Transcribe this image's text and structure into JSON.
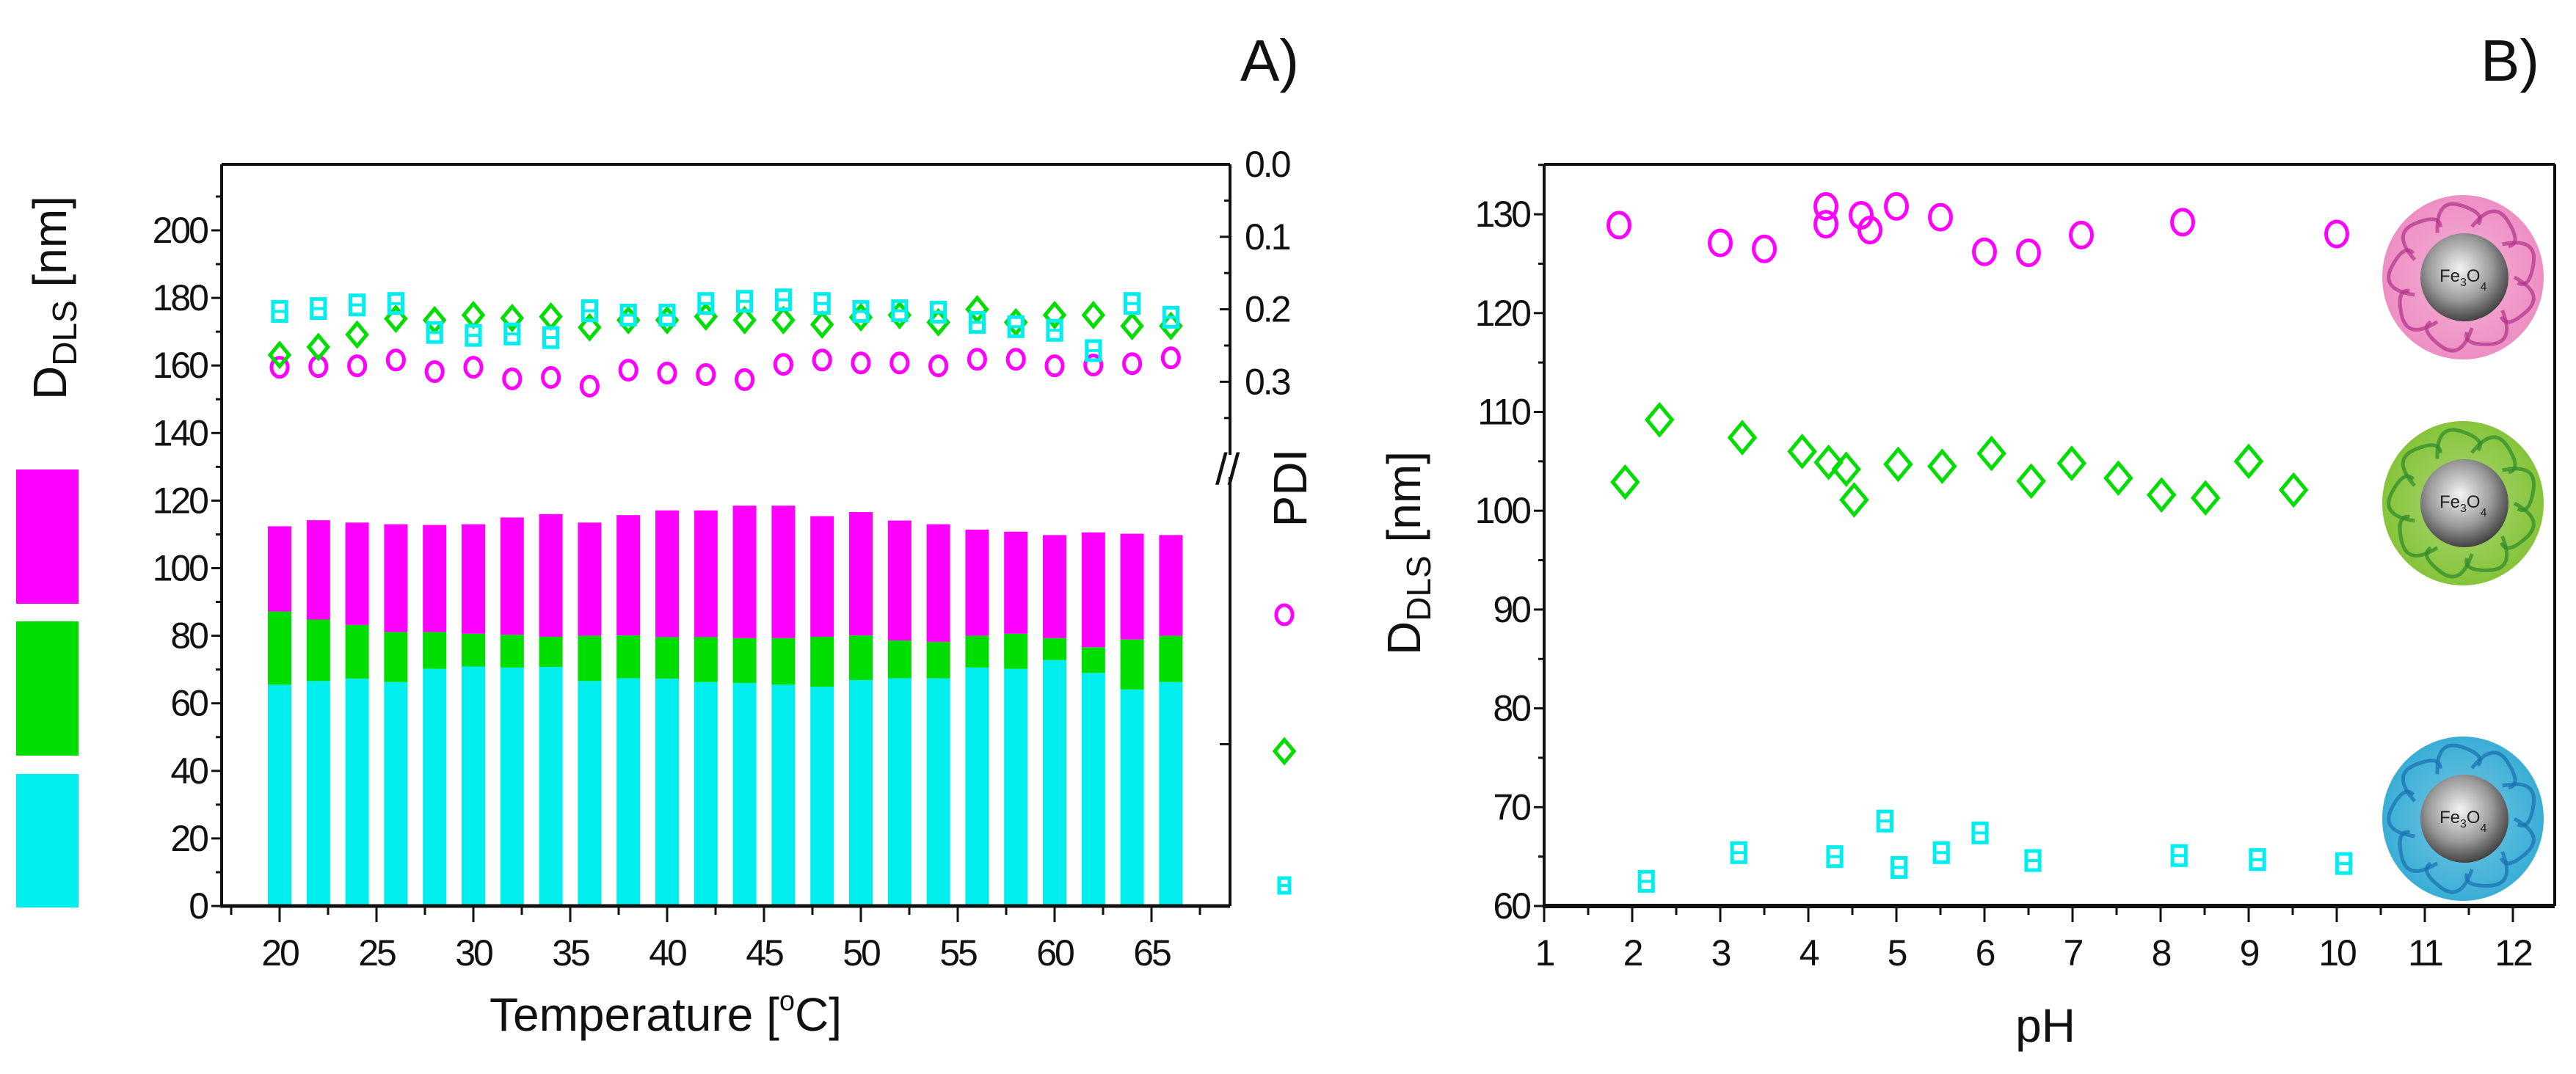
{
  "colors": {
    "magenta": "#ff00ff",
    "green": "#00dd00",
    "cyan": "#00eeee",
    "axis": "#111111"
  },
  "chart_data": [
    {
      "panel": "A)",
      "type": "bar",
      "title": "",
      "xlabel": {
        "text": "Temperature [",
        "sup": "o",
        "end": "C]"
      },
      "ylabel": {
        "main": "D",
        "sub": "DLS",
        "unit": " [nm]"
      },
      "y2label": "PDI",
      "xlim": [
        17.5,
        68.5
      ],
      "ylim": [
        0,
        219
      ],
      "y2lim": [
        0.0,
        1.023
      ],
      "y2_inverted": true,
      "axis_break_label": "//",
      "xticks": [
        "20",
        "25",
        "30",
        "35",
        "40",
        "45",
        "50",
        "55",
        "60",
        "65"
      ],
      "yticks": [
        "0",
        "20",
        "40",
        "60",
        "80",
        "100",
        "120",
        "140",
        "160",
        "180",
        "200"
      ],
      "y2ticks": [
        "0.0",
        "0.1",
        "0.2",
        "0.3"
      ],
      "x": [
        20,
        22,
        24,
        26,
        28,
        30,
        32,
        34,
        36,
        38,
        40,
        42,
        44,
        46,
        48,
        50,
        52,
        54,
        56,
        58,
        60,
        62,
        64,
        66
      ],
      "stacked_bars_cumulative": [
        {
          "color": "cyan",
          "values": [
            65.5,
            66.6,
            67.3,
            66.3,
            70.2,
            70.9,
            70.6,
            70.8,
            66.6,
            67.4,
            67.3,
            66.3,
            66.0,
            65.5,
            64.9,
            66.9,
            67.4,
            67.4,
            70.6,
            70.2,
            72.8,
            69.0,
            64.1,
            66.3
          ]
        },
        {
          "color": "green",
          "values": [
            87.2,
            84.8,
            83.2,
            81.1,
            81.1,
            80.6,
            80.3,
            79.7,
            80.0,
            80.1,
            79.6,
            79.6,
            79.3,
            79.3,
            79.7,
            80.1,
            78.6,
            78.2,
            80.0,
            80.6,
            79.3,
            76.6,
            78.9,
            80.0
          ]
        },
        {
          "color": "magenta",
          "values": [
            112.4,
            114.2,
            113.5,
            113.0,
            112.8,
            113.0,
            115.0,
            116.0,
            113.5,
            115.7,
            117.1,
            117.1,
            118.5,
            118.5,
            115.4,
            116.6,
            114.1,
            113.0,
            111.4,
            110.8,
            109.8,
            110.6,
            110.2,
            109.8
          ]
        }
      ],
      "pdi_series": [
        {
          "marker": "circle",
          "color": "magenta",
          "values": [
            0.28,
            0.279,
            0.278,
            0.27,
            0.286,
            0.28,
            0.296,
            0.294,
            0.306,
            0.284,
            0.288,
            0.29,
            0.297,
            0.276,
            0.27,
            0.274,
            0.274,
            0.278,
            0.269,
            0.269,
            0.278,
            0.277,
            0.275,
            0.267
          ]
        },
        {
          "marker": "diamond",
          "color": "green",
          "values": [
            0.263,
            0.252,
            0.235,
            0.213,
            0.215,
            0.208,
            0.212,
            0.21,
            0.225,
            0.215,
            0.215,
            0.21,
            0.215,
            0.215,
            0.221,
            0.211,
            0.208,
            0.218,
            0.2,
            0.218,
            0.208,
            0.208,
            0.223,
            0.223
          ]
        },
        {
          "marker": "square",
          "color": "cyan",
          "values": [
            0.203,
            0.199,
            0.194,
            0.192,
            0.232,
            0.236,
            0.234,
            0.239,
            0.202,
            0.208,
            0.208,
            0.192,
            0.189,
            0.187,
            0.192,
            0.203,
            0.202,
            0.204,
            0.218,
            0.224,
            0.229,
            0.257,
            0.192,
            0.211
          ]
        }
      ],
      "legend": "left (color blocks) and right (PDI markers)"
    },
    {
      "panel": "B)",
      "type": "scatter",
      "title": "",
      "xlabel": "pH",
      "ylabel": {
        "main": "D",
        "sub": "DLS",
        "unit": " [nm]"
      },
      "xlim": [
        1,
        12.47
      ],
      "ylim": [
        60,
        135
      ],
      "xticks": [
        "1",
        "2",
        "3",
        "4",
        "5",
        "6",
        "7",
        "8",
        "9",
        "10",
        "11",
        "12"
      ],
      "yticks": [
        "60",
        "70",
        "80",
        "90",
        "100",
        "110",
        "120",
        "130"
      ],
      "series": [
        {
          "marker": "circle",
          "color": "magenta",
          "points": [
            [
              1.85,
              128.9
            ],
            [
              3.0,
              127.1
            ],
            [
              3.5,
              126.5
            ],
            [
              4.2,
              130.8
            ],
            [
              4.2,
              129.0
            ],
            [
              4.6,
              129.9
            ],
            [
              4.7,
              128.4
            ],
            [
              5.0,
              130.8
            ],
            [
              5.5,
              129.7
            ],
            [
              6.0,
              126.2
            ],
            [
              6.5,
              126.1
            ],
            [
              7.1,
              127.9
            ],
            [
              8.25,
              129.2
            ],
            [
              10.0,
              128.0
            ]
          ]
        },
        {
          "marker": "diamond",
          "color": "green",
          "points": [
            [
              1.92,
              102.9
            ],
            [
              2.31,
              109.2
            ],
            [
              3.25,
              107.4
            ],
            [
              3.93,
              106.0
            ],
            [
              4.23,
              104.9
            ],
            [
              4.43,
              104.2
            ],
            [
              4.52,
              101.1
            ],
            [
              5.02,
              104.7
            ],
            [
              5.52,
              104.5
            ],
            [
              6.08,
              105.8
            ],
            [
              6.53,
              103.0
            ],
            [
              6.99,
              104.8
            ],
            [
              7.52,
              103.3
            ],
            [
              8.01,
              101.6
            ],
            [
              8.51,
              101.3
            ],
            [
              9.0,
              105.0
            ],
            [
              9.51,
              102.1
            ]
          ]
        },
        {
          "marker": "square",
          "color": "cyan",
          "points": [
            [
              2.16,
              62.5
            ],
            [
              3.21,
              65.4
            ],
            [
              4.3,
              65.0
            ],
            [
              4.87,
              68.6
            ],
            [
              5.03,
              63.9
            ],
            [
              5.51,
              65.4
            ],
            [
              5.95,
              67.4
            ],
            [
              6.55,
              64.6
            ],
            [
              8.21,
              65.1
            ],
            [
              9.1,
              64.7
            ],
            [
              10.08,
              64.3
            ]
          ]
        }
      ],
      "particles": [
        {
          "color": "#ee8fc4",
          "dark": "#b0338a",
          "label": {
            "a": "Fe",
            "b": "3",
            "c": "O",
            "d": "4"
          }
        },
        {
          "color": "#86c43a",
          "dark": "#2e8a2a",
          "label": {
            "a": "Fe",
            "b": "3",
            "c": "O",
            "d": "4"
          }
        },
        {
          "color": "#3aaed6",
          "dark": "#1a6fb0",
          "label": {
            "a": "Fe",
            "b": "3",
            "c": "O",
            "d": "4"
          }
        }
      ]
    }
  ]
}
